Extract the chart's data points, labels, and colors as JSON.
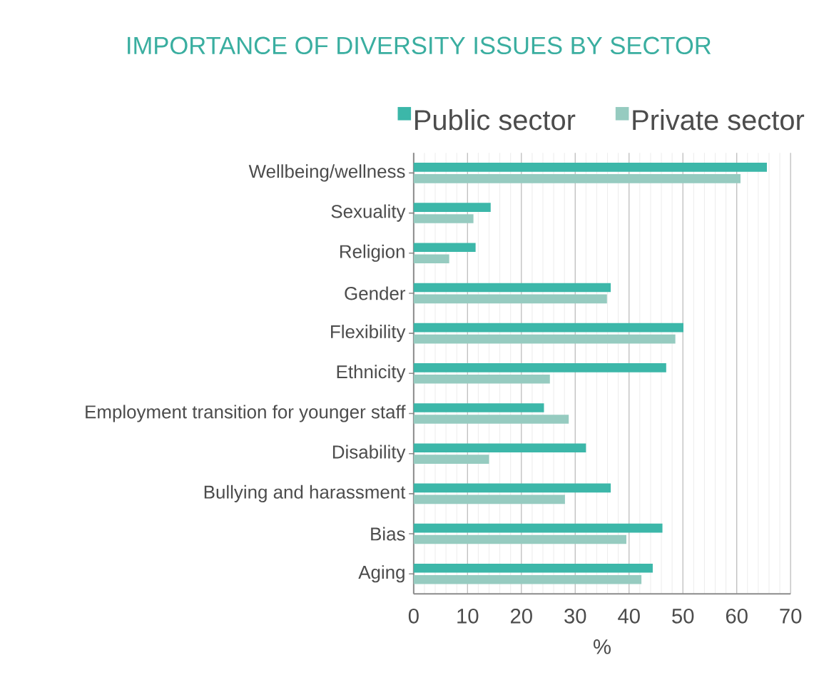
{
  "chart_data": {
    "type": "bar",
    "orientation": "horizontal",
    "title": "IMPORTANCE OF DIVERSITY ISSUES BY SECTOR",
    "xlabel": "%",
    "categories": [
      "Wellbeing/wellness",
      "Sexuality",
      "Religion",
      "Gender",
      "Flexibility",
      "Ethnicity",
      "Employment transition for younger staff",
      "Disability",
      "Bullying and harassment",
      "Bias",
      "Aging"
    ],
    "series": [
      {
        "name": "Public sector",
        "color": "#3cb7a9",
        "values": [
          65.6,
          14.3,
          11.5,
          36.6,
          50.1,
          46.9,
          24.2,
          32.0,
          36.6,
          46.2,
          44.4
        ]
      },
      {
        "name": "Private sector",
        "color": "#96cbc0",
        "values": [
          60.7,
          11.1,
          6.6,
          35.9,
          48.6,
          25.3,
          28.8,
          14.0,
          28.1,
          39.5,
          42.3
        ]
      }
    ],
    "xlim": [
      0,
      70
    ],
    "xticks": [
      0,
      10,
      20,
      30,
      40,
      50,
      60,
      70
    ],
    "grid": "x",
    "legend": "top"
  }
}
